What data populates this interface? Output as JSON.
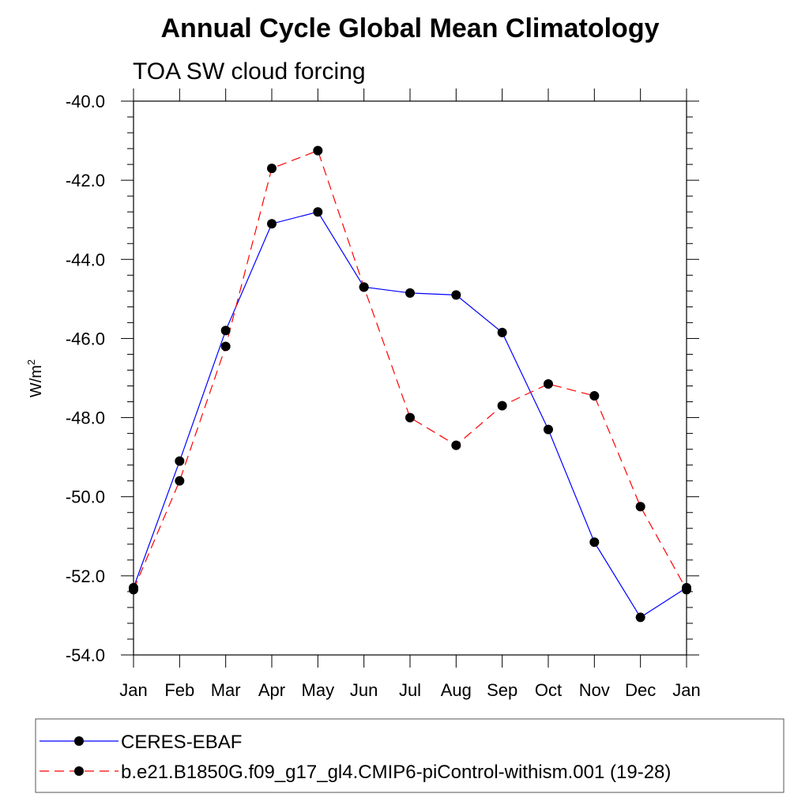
{
  "chart_data": {
    "type": "line",
    "title": "Annual Cycle Global Mean Climatology",
    "subtitle": "TOA SW cloud forcing",
    "ylabel": "W/m",
    "ylabel_sup": "2",
    "xlabel": "",
    "categories": [
      "Jan",
      "Feb",
      "Mar",
      "Apr",
      "May",
      "Jun",
      "Jul",
      "Aug",
      "Sep",
      "Oct",
      "Nov",
      "Dec",
      "Jan"
    ],
    "ylim": [
      -54.0,
      -40.0
    ],
    "yticks": [
      -40.0,
      -42.0,
      -44.0,
      -46.0,
      -48.0,
      -50.0,
      -52.0,
      -54.0
    ],
    "ytick_labels": [
      "-40.0",
      "-42.0",
      "-44.0",
      "-46.0",
      "-48.0",
      "-50.0",
      "-52.0",
      "-54.0"
    ],
    "grid": false,
    "legend_position": "bottom",
    "series": [
      {
        "name": "CERES-EBAF",
        "color": "#0000ff",
        "dash": "solid",
        "marker": "circle",
        "values": [
          -52.3,
          -49.1,
          -45.8,
          -43.1,
          -42.8,
          -44.7,
          -44.85,
          -44.9,
          -45.85,
          -48.3,
          -51.15,
          -53.05,
          -52.3
        ]
      },
      {
        "name": "b.e21.B1850G.f09_g17_gl4.CMIP6-piControl-withism.001 (19-28)",
        "color": "#ff0000",
        "dash": "dashed",
        "marker": "circle",
        "values": [
          -52.35,
          -49.6,
          -46.2,
          -41.7,
          -41.25,
          -44.7,
          -48.0,
          -48.7,
          -47.7,
          -47.15,
          -47.45,
          -50.25,
          -52.35
        ]
      }
    ]
  }
}
